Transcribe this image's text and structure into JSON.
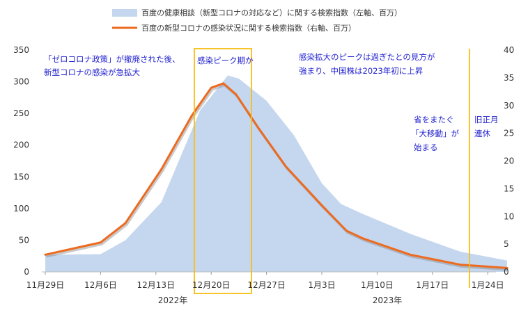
{
  "chart_data": {
    "type": "area",
    "legend": [
      {
        "label": "百度の健康相談（新型コロナの対応など）に関する検索指数（左軸、百万）",
        "kind": "area",
        "color": "#c5d7ef"
      },
      {
        "label": "百度の新型コロナの感染状況に関する検索指数（右軸、百万）",
        "kind": "line",
        "color": "#ed6a1f"
      }
    ],
    "x_ticks": [
      "11月29日",
      "12月6日",
      "12月13日",
      "12月20日",
      "12月27日",
      "1月3日",
      "1月10日",
      "1月17日",
      "1月24日"
    ],
    "year_labels": [
      "2022年",
      "2023年"
    ],
    "y_left": {
      "ticks": [
        "0",
        "50",
        "100",
        "150",
        "200",
        "250",
        "300",
        "350"
      ],
      "range": [
        0,
        350
      ]
    },
    "y_right": {
      "ticks": [
        "0",
        "5",
        "10",
        "15",
        "20",
        "25",
        "30",
        "35",
        "40"
      ],
      "range": [
        0,
        40
      ]
    },
    "series": [
      {
        "name": "百度の健康相談（新型コロナの対応など）に関する検索指数（左軸、百万）",
        "axis": "left",
        "points": [
          [
            0,
            27
          ],
          [
            1,
            28
          ],
          [
            1.45,
            50
          ],
          [
            2.1,
            110
          ],
          [
            2.8,
            255
          ],
          [
            3.3,
            310
          ],
          [
            3.5,
            305
          ],
          [
            4.0,
            270
          ],
          [
            4.5,
            215
          ],
          [
            5.0,
            140
          ],
          [
            5.35,
            107
          ],
          [
            5.7,
            93
          ],
          [
            6.6,
            60
          ],
          [
            7.5,
            32
          ],
          [
            8.35,
            18
          ]
        ]
      },
      {
        "name": "百度の新型コロナの感染状況に関する検索指数（右軸、百万）",
        "axis": "right",
        "points": [
          [
            0,
            3.1
          ],
          [
            1,
            5.3
          ],
          [
            1.45,
            8.8
          ],
          [
            2.1,
            18.5
          ],
          [
            2.65,
            28.2
          ],
          [
            3.0,
            33.2
          ],
          [
            3.22,
            34.0
          ],
          [
            3.45,
            32.0
          ],
          [
            3.85,
            26.0
          ],
          [
            4.35,
            19.0
          ],
          [
            5.0,
            12.0
          ],
          [
            5.45,
            7.4
          ],
          [
            5.75,
            6.0
          ],
          [
            6.6,
            3.1
          ],
          [
            7.5,
            1.3
          ],
          [
            8.35,
            0.7
          ]
        ]
      }
    ],
    "annotations": {
      "zero_covid": [
        "「ゼロコロナ政策」が撤廃された後、",
        "新型コロナの感染が急拡大"
      ],
      "peak_period": "感染ピーク期か",
      "peak_view": [
        "感染拡大のピークは過ぎたとの見方が",
        "強まり、中国株は2023年初に上昇"
      ],
      "travel": [
        "省をまたぐ",
        "「大移動」が",
        "始まる"
      ],
      "lunar_new_year": [
        "旧正月",
        "連休"
      ]
    },
    "colors": {
      "area": "#c5d7ef",
      "line": "#ed6a1f",
      "highlight": "#f7bd12",
      "annotation": "#1f1fcf"
    },
    "grid": false
  }
}
